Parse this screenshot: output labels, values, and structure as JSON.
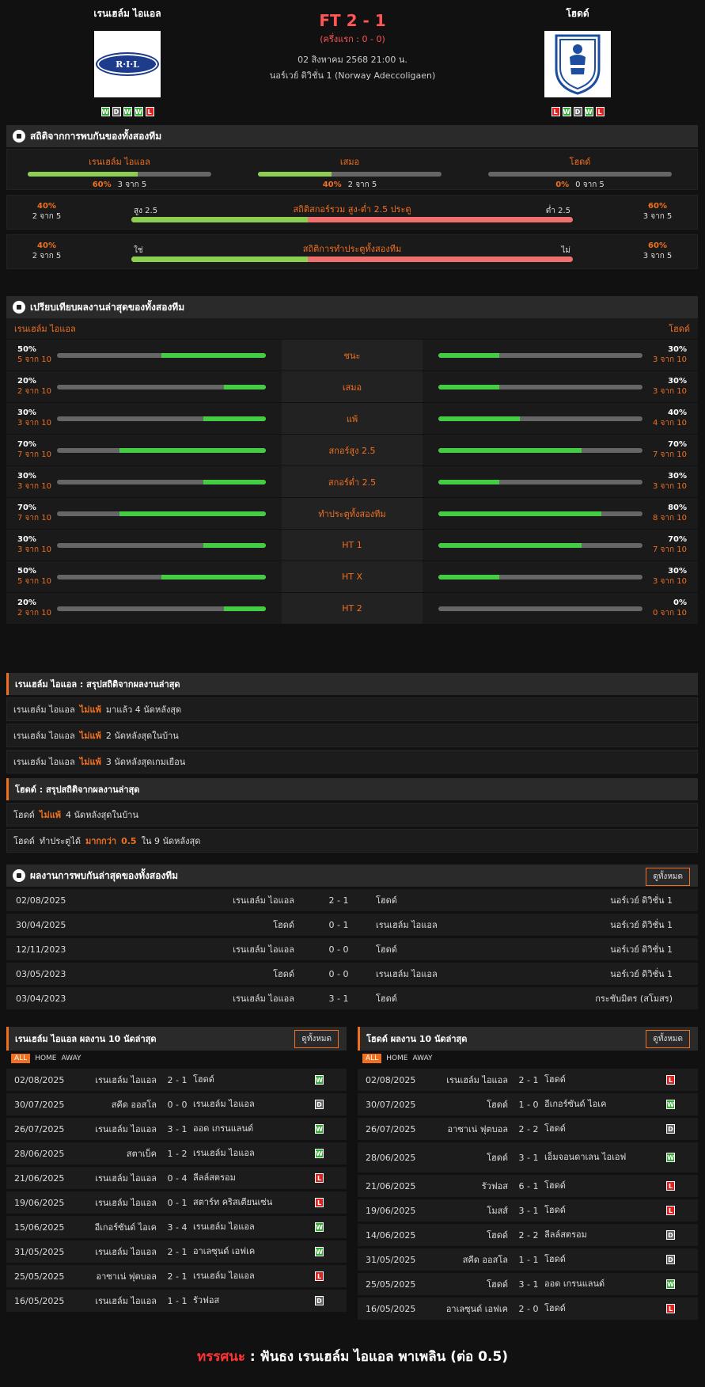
{
  "header": {
    "home_name": "เรนเฮล์ม ไอแอล",
    "away_name": "โฮดด์",
    "home_logo_text": "R·I·L",
    "ft": "FT 2 - 1",
    "ht": "(ครึ่งแรก : 0 - 0)",
    "date": "02 สิงหาคม 2568 21:00 น.",
    "league": "นอร์เวย์ ดิวิชั่น 1 (Norway Adeccoligaen)",
    "home_form": [
      "W",
      "D",
      "W",
      "W",
      "L"
    ],
    "away_form": [
      "L",
      "W",
      "D",
      "W",
      "L"
    ]
  },
  "h2h": {
    "title": "สถิติจากการพบกันของทั้งสองทีม",
    "cols": [
      {
        "label": "เรนเฮล์ม ไอแอล",
        "pct": "60%",
        "count": "3 จาก 5",
        "fill": 0.6
      },
      {
        "label": "เสมอ",
        "pct": "40%",
        "count": "2 จาก 5",
        "fill": 0.4
      },
      {
        "label": "โฮดด์",
        "pct": "0%",
        "count": "0 จาก 5",
        "fill": 0
      }
    ],
    "ou": {
      "title": "สถิติสกอร์รวม สูง-ต่ำ 2.5 ประตู",
      "left_label": "สูง 2.5",
      "right_label": "ต่ำ 2.5",
      "left_pct": "40%",
      "left_count": "2 จาก 5",
      "right_pct": "60%",
      "right_count": "3 จาก 5",
      "fill": 0.4
    },
    "btts": {
      "title": "สถิติการทำประตูทั้งสองทีม",
      "left_label": "ใช่",
      "right_label": "ไม่",
      "left_pct": "40%",
      "left_count": "2 จาก 5",
      "right_pct": "60%",
      "right_count": "3 จาก 5",
      "fill": 0.4
    }
  },
  "compare": {
    "title": "เปรียบเทียบผลงานล่าสุดของทั้งสองทีม",
    "home": "เรนเฮล์ม ไอแอล",
    "away": "โฮดด์",
    "rows": [
      {
        "label": "ชนะ",
        "l_pct": "50%",
        "l_cnt": "5 จาก 10",
        "l": 0.5,
        "r_pct": "30%",
        "r_cnt": "3 จาก 10",
        "r": 0.3
      },
      {
        "label": "เสมอ",
        "l_pct": "20%",
        "l_cnt": "2 จาก 10",
        "l": 0.2,
        "r_pct": "30%",
        "r_cnt": "3 จาก 10",
        "r": 0.3
      },
      {
        "label": "แพ้",
        "l_pct": "30%",
        "l_cnt": "3 จาก 10",
        "l": 0.3,
        "r_pct": "40%",
        "r_cnt": "4 จาก 10",
        "r": 0.4
      },
      {
        "label": "สกอร์สูง 2.5",
        "l_pct": "70%",
        "l_cnt": "7 จาก 10",
        "l": 0.7,
        "r_pct": "70%",
        "r_cnt": "7 จาก 10",
        "r": 0.7
      },
      {
        "label": "สกอร์ต่ำ 2.5",
        "l_pct": "30%",
        "l_cnt": "3 จาก 10",
        "l": 0.3,
        "r_pct": "30%",
        "r_cnt": "3 จาก 10",
        "r": 0.3
      },
      {
        "label": "ทำประตูทั้งสองทีม",
        "l_pct": "70%",
        "l_cnt": "7 จาก 10",
        "l": 0.7,
        "r_pct": "80%",
        "r_cnt": "8 จาก 10",
        "r": 0.8
      },
      {
        "label": "HT 1",
        "l_pct": "30%",
        "l_cnt": "3 จาก 10",
        "l": 0.3,
        "r_pct": "70%",
        "r_cnt": "7 จาก 10",
        "r": 0.7
      },
      {
        "label": "HT X",
        "l_pct": "50%",
        "l_cnt": "5 จาก 10",
        "l": 0.5,
        "r_pct": "30%",
        "r_cnt": "3 จาก 10",
        "r": 0.3
      },
      {
        "label": "HT 2",
        "l_pct": "20%",
        "l_cnt": "2 จาก 10",
        "l": 0.2,
        "r_pct": "0%",
        "r_cnt": "0 จาก 10",
        "r": 0
      }
    ]
  },
  "home_summary": {
    "title": "เรนเฮล์ม ไอแอล : สรุปสถิติจากผลงานล่าสุด",
    "rows": [
      {
        "a": "เรนเฮล์ม ไอแอล",
        "b": "ไม่แพ้",
        "c": "มาแล้ว 4 นัดหลังสุด"
      },
      {
        "a": "เรนเฮล์ม ไอแอล",
        "b": "ไม่แพ้",
        "c": "2 นัดหลังสุดในบ้าน"
      },
      {
        "a": "เรนเฮล์ม ไอแอล",
        "b": "ไม่แพ้",
        "c": "3 นัดหลังสุดเกมเยือน"
      }
    ]
  },
  "away_summary": {
    "title": "โฮดด์ : สรุปสถิติจากผลงานล่าสุด",
    "rows": [
      {
        "a": "โฮดด์",
        "b": "ไม่แพ้",
        "c": "4 นัดหลังสุดในบ้าน",
        "d": "",
        "e": ""
      },
      {
        "a": "โฮดด์",
        "b": "ทำประตูได้",
        "c": "มากกว่า",
        "d": "0.5",
        "e": "ใน 9 นัดหลังสุด"
      }
    ]
  },
  "recent_h2h": {
    "title": "ผลงานการพบกันล่าสุดของทั้งสองทีม",
    "btn": "ดูทั้งหมด",
    "rows": [
      {
        "date": "02/08/2025",
        "home": "เรนเฮล์ม ไอแอล",
        "score": "2 - 1",
        "away": "โฮดด์",
        "league": "นอร์เวย์ ดิวิชั่น 1"
      },
      {
        "date": "30/04/2025",
        "home": "โฮดด์",
        "score": "0 - 1",
        "away": "เรนเฮล์ม ไอแอล",
        "league": "นอร์เวย์ ดิวิชั่น 1"
      },
      {
        "date": "12/11/2023",
        "home": "เรนเฮล์ม ไอแอล",
        "score": "0 - 0",
        "away": "โฮดด์",
        "league": "นอร์เวย์ ดิวิชั่น 1"
      },
      {
        "date": "03/05/2023",
        "home": "โฮดด์",
        "score": "0 - 0",
        "away": "เรนเฮล์ม ไอแอล",
        "league": "นอร์เวย์ ดิวิชั่น 1"
      },
      {
        "date": "03/04/2023",
        "home": "เรนเฮล์ม ไอแอล",
        "score": "3 - 1",
        "away": "โฮดด์",
        "league": "กระชับมิตร (สโมสร)"
      }
    ]
  },
  "home_last10": {
    "title": "เรนเฮล์ม ไอแอล ผลงาน 10 นัดล่าสุด",
    "btn": "ดูทั้งหมด",
    "tabs": [
      "ALL",
      "HOME",
      "AWAY"
    ],
    "rows": [
      {
        "date": "02/08/2025",
        "home": "เรนเฮล์ม ไอแอล",
        "score": "2 - 1",
        "away": "โฮดด์",
        "res": "W"
      },
      {
        "date": "30/07/2025",
        "home": "สคีด ออสโล",
        "score": "0 - 0",
        "away": "เรนเฮล์ม ไอแอล",
        "res": "D"
      },
      {
        "date": "26/07/2025",
        "home": "เรนเฮล์ม ไอแอล",
        "score": "3 - 1",
        "away": "ออด เกรนแลนด์",
        "res": "W"
      },
      {
        "date": "28/06/2025",
        "home": "สตาเบ็ค",
        "score": "1 - 2",
        "away": "เรนเฮล์ม ไอแอล",
        "res": "W"
      },
      {
        "date": "21/06/2025",
        "home": "เรนเฮล์ม ไอแอล",
        "score": "0 - 4",
        "away": "ลีลล์สตรอม",
        "res": "L"
      },
      {
        "date": "19/06/2025",
        "home": "เรนเฮล์ม ไอแอล",
        "score": "0 - 1",
        "away": "สตาร์ท คริสเตียนเซ่น",
        "res": "L"
      },
      {
        "date": "15/06/2025",
        "home": "อีเกอร์ซันด์ ไอเค",
        "score": "3 - 4",
        "away": "เรนเฮล์ม ไอแอล",
        "res": "W"
      },
      {
        "date": "31/05/2025",
        "home": "เรนเฮล์ม ไอแอล",
        "score": "2 - 1",
        "away": "อาเลซุนด์ เอฟเค",
        "res": "W"
      },
      {
        "date": "25/05/2025",
        "home": "อาซาเน่ ฟุตบอล",
        "score": "2 - 1",
        "away": "เรนเฮล์ม ไอแอล",
        "res": "L"
      },
      {
        "date": "16/05/2025",
        "home": "เรนเฮล์ม ไอแอล",
        "score": "1 - 1",
        "away": "รัวฟอส",
        "res": "D"
      }
    ]
  },
  "away_last10": {
    "title": "โฮดด์ ผลงาน 10 นัดล่าสุด",
    "btn": "ดูทั้งหมด",
    "tabs": [
      "ALL",
      "HOME",
      "AWAY"
    ],
    "rows": [
      {
        "date": "02/08/2025",
        "home": "เรนเฮล์ม ไอแอล",
        "score": "2 - 1",
        "away": "โฮดด์",
        "res": "L"
      },
      {
        "date": "30/07/2025",
        "home": "โฮดด์",
        "score": "1 - 0",
        "away": "อีเกอร์ซันด์ ไอเค",
        "res": "W"
      },
      {
        "date": "26/07/2025",
        "home": "อาซาเน่ ฟุตบอล",
        "score": "2 - 2",
        "away": "โฮดด์",
        "res": "D"
      },
      {
        "date": "28/06/2025",
        "home": "โฮดด์",
        "score": "3 - 1",
        "away": "เอ็มจอนดาเลน ไอเอฟ",
        "res": "W",
        "tall": true
      },
      {
        "date": "21/06/2025",
        "home": "รัวฟอส",
        "score": "6 - 1",
        "away": "โฮดด์",
        "res": "L"
      },
      {
        "date": "19/06/2025",
        "home": "โมสส์",
        "score": "3 - 1",
        "away": "โฮดด์",
        "res": "L"
      },
      {
        "date": "14/06/2025",
        "home": "โฮดด์",
        "score": "2 - 2",
        "away": "ลีลล์สตรอม",
        "res": "D"
      },
      {
        "date": "31/05/2025",
        "home": "สคีด ออสโล",
        "score": "1 - 1",
        "away": "โฮดด์",
        "res": "D"
      },
      {
        "date": "25/05/2025",
        "home": "โฮดด์",
        "score": "3 - 1",
        "away": "ออด เกรนแลนด์",
        "res": "W"
      },
      {
        "date": "16/05/2025",
        "home": "อาเลซุนด์ เอฟเค",
        "score": "2 - 0",
        "away": "โฮดด์",
        "res": "L"
      }
    ]
  },
  "verdict": {
    "label": "ทรรศนะ",
    "sep": ":",
    "text": "ฟันธง เรนเฮล์ม ไอแอล พาเพลิน (ต่อ 0.5)"
  }
}
